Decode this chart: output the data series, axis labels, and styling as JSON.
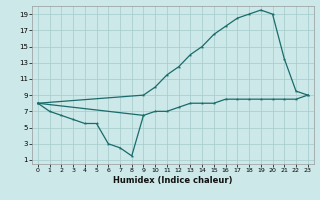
{
  "xlabel": "Humidex (Indice chaleur)",
  "bg_color": "#cce8e8",
  "line_color": "#1a6b6b",
  "grid_color": "#aacece",
  "xlim": [
    -0.5,
    23.5
  ],
  "ylim": [
    0.5,
    20
  ],
  "xticks": [
    0,
    1,
    2,
    3,
    4,
    5,
    6,
    7,
    8,
    9,
    10,
    11,
    12,
    13,
    14,
    15,
    16,
    17,
    18,
    19,
    20,
    21,
    22,
    23
  ],
  "yticks": [
    1,
    3,
    5,
    7,
    9,
    11,
    13,
    15,
    17,
    19
  ],
  "upper_x": [
    0,
    9,
    10,
    11,
    12,
    13,
    14,
    15,
    16,
    17,
    18,
    19,
    20,
    21,
    22,
    23
  ],
  "upper_y": [
    8,
    9,
    10,
    11.5,
    12.5,
    14,
    15,
    16.5,
    17.5,
    18.5,
    19,
    19.5,
    19,
    13.5,
    9.5,
    9
  ],
  "mid_x": [
    0,
    9,
    10,
    11,
    12,
    13,
    14,
    15,
    16,
    17,
    18,
    19,
    20,
    21,
    22,
    23
  ],
  "mid_y": [
    8,
    6.5,
    7,
    7,
    7.5,
    8,
    8,
    8,
    8.5,
    8.5,
    8.5,
    8.5,
    8.5,
    8.5,
    8.5,
    9
  ],
  "lower_x": [
    0,
    1,
    2,
    3,
    4,
    5,
    6,
    7,
    8,
    9
  ],
  "lower_y": [
    8,
    7,
    6.5,
    6,
    5.5,
    5.5,
    3,
    2.5,
    1.5,
    6.5
  ]
}
